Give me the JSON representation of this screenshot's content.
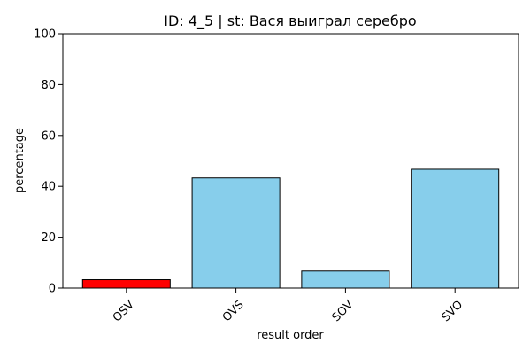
{
  "chart_data": {
    "type": "bar",
    "title": "ID: 4_5 | st: Вася выиграл серебро",
    "xlabel": "result order",
    "ylabel": "percentage",
    "categories": [
      "OSV",
      "OVS",
      "SOV",
      "SVO"
    ],
    "values": [
      3.3,
      43.3,
      6.7,
      46.7
    ],
    "bar_colors": [
      "#ff0000",
      "#87ceeb",
      "#87ceeb",
      "#87ceeb"
    ],
    "edge_color": "#000000",
    "ylim": [
      0,
      100
    ],
    "yticks": [
      0,
      20,
      40,
      60,
      80,
      100
    ],
    "xtick_rotation_deg": 45,
    "grid": false,
    "legend": false
  }
}
